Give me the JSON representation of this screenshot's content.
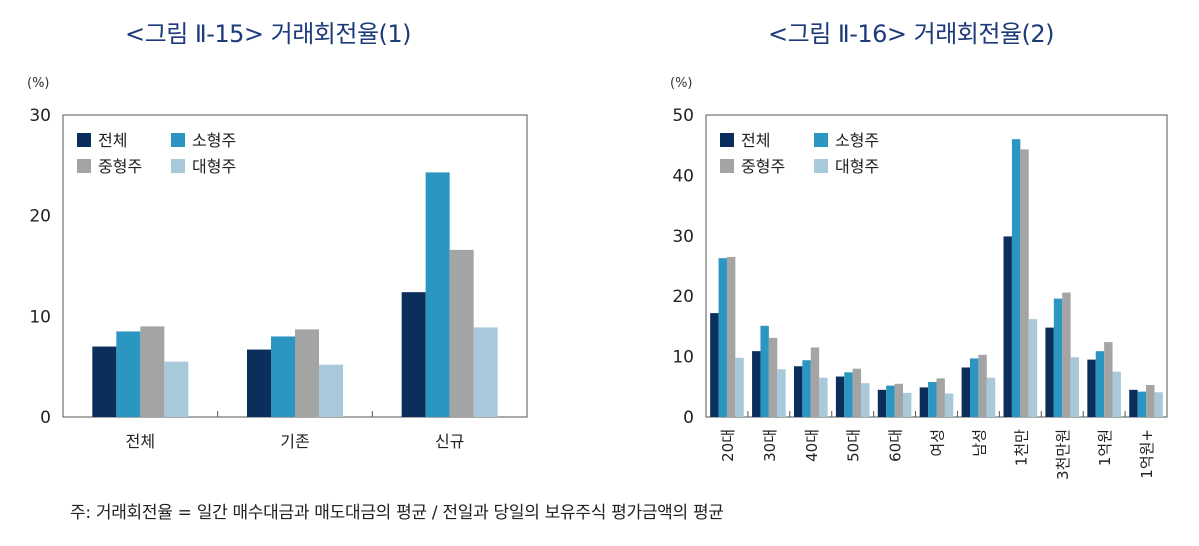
{
  "colors": {
    "전체": "#0b2f5a",
    "소형주": "#2b96c1",
    "중형주": "#a4a4a4",
    "대형주": "#a7c9d9",
    "title": "#1d3a7a"
  },
  "note": "주: 거래회전율 = 일간 매수대금과 매도대금의 평균 / 전일과 당일의 보유주식 평가금액의 평균",
  "chart_data": [
    {
      "type": "bar",
      "title": "<그림 Ⅱ-15> 거래회전율(1)",
      "ylabel": "(%)",
      "ylim": [
        0,
        30
      ],
      "yticks": [
        "0",
        "10",
        "20",
        "30"
      ],
      "grid": false,
      "legend": "top-left",
      "categories": [
        "전체",
        "기존",
        "신규"
      ],
      "series": [
        {
          "name": "전체",
          "values": [
            7.0,
            6.7,
            12.4
          ]
        },
        {
          "name": "소형주",
          "values": [
            8.5,
            8.0,
            24.3
          ]
        },
        {
          "name": "중형주",
          "values": [
            9.0,
            8.7,
            16.6
          ]
        },
        {
          "name": "대형주",
          "values": [
            5.5,
            5.2,
            8.9
          ]
        }
      ]
    },
    {
      "type": "bar",
      "title": "<그림 Ⅱ-16> 거래회전율(2)",
      "ylabel": "(%)",
      "ylim": [
        0,
        50
      ],
      "yticks": [
        "0",
        "10",
        "20",
        "30",
        "40",
        "50"
      ],
      "grid": false,
      "legend": "top-left",
      "categories": [
        "20대",
        "30대",
        "40대",
        "50대",
        "60대",
        "여성",
        "남성",
        "1천만",
        "3천만원",
        "1억원",
        "1억원+"
      ],
      "series": [
        {
          "name": "전체",
          "values": [
            17.2,
            10.9,
            8.4,
            6.7,
            4.5,
            4.9,
            8.2,
            29.9,
            14.8,
            9.5,
            4.5
          ]
        },
        {
          "name": "소형주",
          "values": [
            26.3,
            15.1,
            9.4,
            7.4,
            5.2,
            5.8,
            9.7,
            46.0,
            19.6,
            10.9,
            4.2
          ]
        },
        {
          "name": "중형주",
          "values": [
            26.5,
            13.1,
            11.5,
            8.0,
            5.5,
            6.4,
            10.3,
            44.3,
            20.6,
            12.4,
            5.3
          ]
        },
        {
          "name": "대형주",
          "values": [
            9.8,
            7.9,
            6.5,
            5.6,
            4.0,
            3.9,
            6.5,
            16.2,
            9.9,
            7.5,
            4.1
          ]
        }
      ]
    }
  ]
}
